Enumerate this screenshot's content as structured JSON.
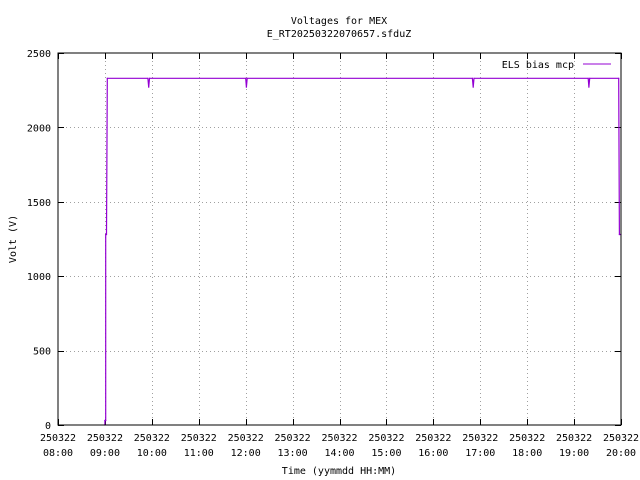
{
  "chart_data": {
    "type": "line",
    "title": "Voltages for MEX",
    "subtitle": "E_RT20250322070657.sfduZ",
    "xlabel": "Time (yymmdd HH:MM)",
    "ylabel": "Volt (V)",
    "xlim": [
      "250322 08:00",
      "250322 20:00"
    ],
    "ylim": [
      0,
      2500
    ],
    "grid": true,
    "legend_position": "top-right",
    "x_ticks": [
      {
        "date": "250322",
        "time": "08:00"
      },
      {
        "date": "250322",
        "time": "09:00"
      },
      {
        "date": "250322",
        "time": "10:00"
      },
      {
        "date": "250322",
        "time": "11:00"
      },
      {
        "date": "250322",
        "time": "12:00"
      },
      {
        "date": "250322",
        "time": "13:00"
      },
      {
        "date": "250322",
        "time": "14:00"
      },
      {
        "date": "250322",
        "time": "15:00"
      },
      {
        "date": "250322",
        "time": "16:00"
      },
      {
        "date": "250322",
        "time": "17:00"
      },
      {
        "date": "250322",
        "time": "18:00"
      },
      {
        "date": "250322",
        "time": "19:00"
      },
      {
        "date": "250322",
        "time": "20:00"
      }
    ],
    "y_ticks": [
      "0",
      "500",
      "1000",
      "1500",
      "2000",
      "2500"
    ],
    "series": [
      {
        "name": "ELS bias mcp",
        "color": "#9400d3",
        "points": [
          [
            "250322 09:00",
            0
          ],
          [
            "250322 09:00",
            30
          ],
          [
            "250322 09:01",
            30
          ],
          [
            "250322 09:01",
            1280
          ],
          [
            "250322 09:02",
            1280
          ],
          [
            "250322 09:03",
            2330
          ],
          [
            "250322 09:55",
            2330
          ],
          [
            "250322 09:56",
            2270
          ],
          [
            "250322 09:57",
            2330
          ],
          [
            "250322 12:00",
            2330
          ],
          [
            "250322 12:01",
            2270
          ],
          [
            "250322 12:02",
            2330
          ],
          [
            "250322 16:50",
            2330
          ],
          [
            "250322 16:51",
            2270
          ],
          [
            "250322 16:52",
            2330
          ],
          [
            "250322 19:18",
            2330
          ],
          [
            "250322 19:19",
            2270
          ],
          [
            "250322 19:20",
            2330
          ],
          [
            "250322 19:57",
            2330
          ],
          [
            "250322 19:58",
            1280
          ],
          [
            "250322 20:00",
            1280
          ]
        ]
      }
    ]
  }
}
